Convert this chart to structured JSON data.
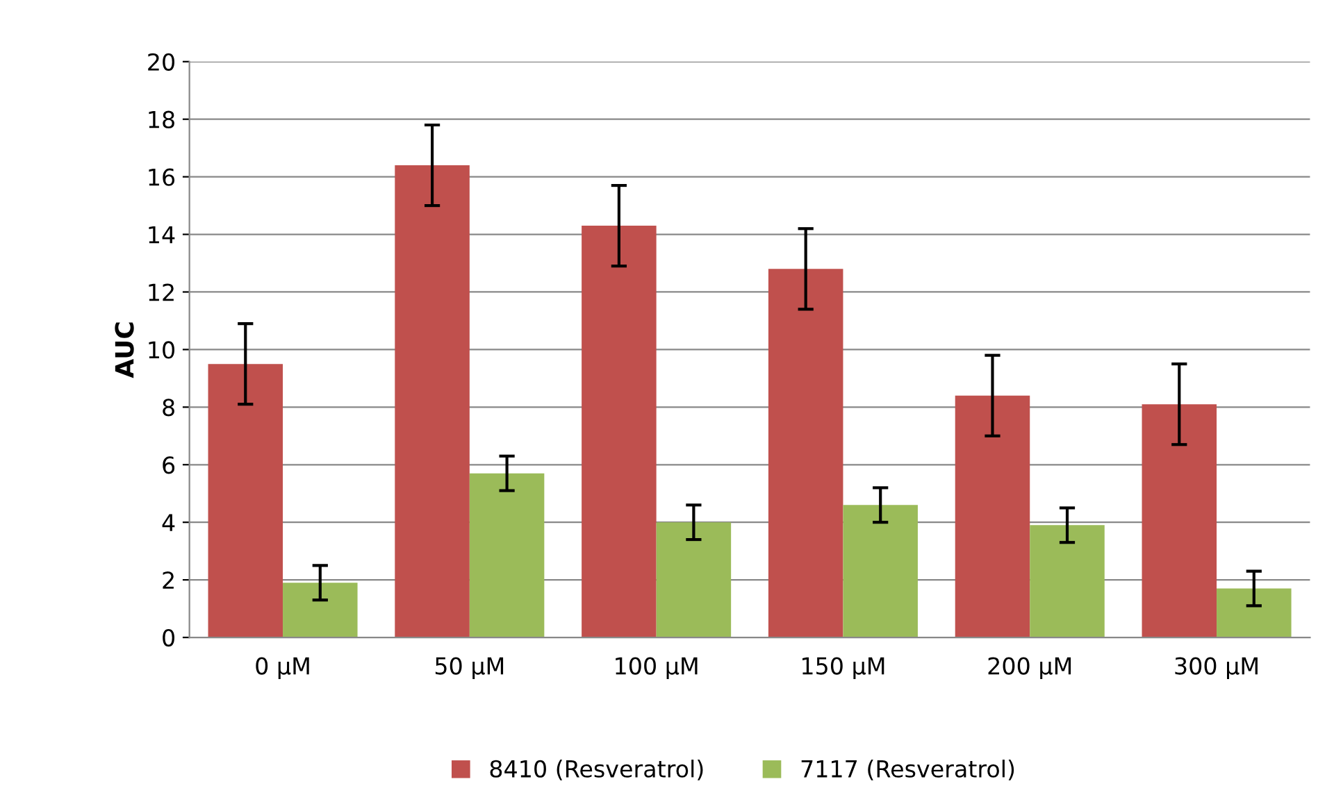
{
  "chart_data": {
    "type": "bar",
    "ylabel": "AUC",
    "categories": [
      "0 μM",
      "50 μM",
      "100 μM",
      "150 μM",
      "200 μM",
      "300 μM"
    ],
    "series": [
      {
        "name": "8410 (Resveratrol)",
        "color": "#c0504d",
        "values": [
          9.5,
          16.4,
          14.3,
          12.8,
          8.4,
          8.1
        ],
        "errors": [
          1.4,
          1.4,
          1.4,
          1.4,
          1.4,
          1.4
        ]
      },
      {
        "name": "7117 (Resveratrol)",
        "color": "#9bbb59",
        "values": [
          1.9,
          5.7,
          4.0,
          4.6,
          3.9,
          1.7
        ],
        "errors": [
          0.6,
          0.6,
          0.6,
          0.6,
          0.6,
          0.6
        ]
      }
    ],
    "ylim": [
      0,
      20
    ],
    "yticks": [
      0,
      2,
      4,
      6,
      8,
      10,
      12,
      14,
      16,
      18,
      20
    ],
    "grid": "y",
    "legend": "bottom"
  }
}
